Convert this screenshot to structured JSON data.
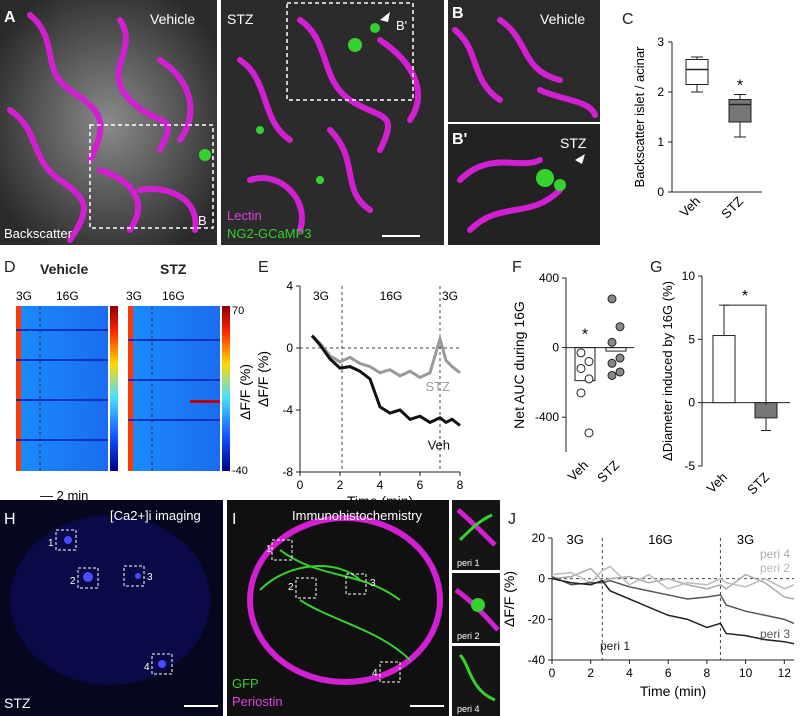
{
  "panel_labels": {
    "A": "A",
    "B": "B",
    "Bprime": "B'",
    "C": "C",
    "D": "D",
    "E": "E",
    "F": "F",
    "G": "G",
    "H": "H",
    "I": "I",
    "J": "J"
  },
  "micrographs": {
    "a_vehicle": "Vehicle",
    "a_stz": "STZ",
    "backscatter": "Backscatter",
    "box_b": "B",
    "box_bprime": "B'",
    "lectin": "Lectin",
    "ng2": "NG2-GCaMP3",
    "b_vehicle": "Vehicle",
    "bprime_stz": "STZ",
    "h_title": "[Ca2+]i imaging",
    "h_stz": "STZ",
    "i_title": "Immunohistochemistry",
    "gfp": "GFP",
    "periostin": "Periostin",
    "peri_labels": [
      "peri 1",
      "peri 2",
      "peri 4"
    ],
    "roi_numbers": [
      "1",
      "2",
      "3",
      "4"
    ]
  },
  "colors": {
    "magenta": "#d11fd1",
    "green": "#35d12f",
    "blue_cells": "#2a2ad6",
    "veh_line": "#111111",
    "stz_line": "#999999",
    "stz_box": "#777777"
  },
  "heatmap": {
    "vehicle": "Vehicle",
    "stz": "STZ",
    "g3": "3G",
    "g16": "16G",
    "colorbar_max": "70",
    "colorbar_min": "-40",
    "colorbar_label": "ΔF/F (%)",
    "scale": "— 2 min"
  },
  "chart_data": [
    {
      "type": "box",
      "panel": "C",
      "categories": [
        "Veh",
        "STZ"
      ],
      "ylabel": "Backscatter islet / acinar",
      "ylim": [
        0,
        3
      ],
      "yticks": [
        "0",
        "1",
        "2",
        "3"
      ],
      "boxes": [
        {
          "name": "Veh",
          "min": 2.0,
          "q1": 2.15,
          "median": 2.45,
          "q3": 2.65,
          "max": 2.7
        },
        {
          "name": "STZ",
          "min": 1.1,
          "q1": 1.4,
          "median": 1.75,
          "q3": 1.85,
          "max": 1.95
        }
      ],
      "annotation": "*"
    },
    {
      "type": "line",
      "panel": "E",
      "xlabel": "Time (min)",
      "ylabel": "ΔF/F (%)",
      "xlim": [
        0,
        8
      ],
      "ylim": [
        -8,
        4
      ],
      "xticks": [
        "0",
        "2",
        "4",
        "6",
        "8"
      ],
      "yticks": [
        "4",
        "0",
        "-4",
        "-8"
      ],
      "phase_labels": [
        "3G",
        "16G",
        "3G"
      ],
      "phase_boundaries": [
        2.1,
        7.0
      ],
      "series": [
        {
          "name": "STZ",
          "x": [
            0.6,
            1.0,
            1.5,
            2.0,
            2.5,
            3.0,
            3.5,
            4.0,
            4.5,
            5.0,
            5.5,
            6.0,
            6.5,
            7.0,
            7.3,
            7.6,
            8.0
          ],
          "y": [
            0.8,
            0.3,
            -0.5,
            -0.9,
            -0.6,
            -1.0,
            -1.2,
            -1.6,
            -1.4,
            -1.8,
            -1.5,
            -1.9,
            -1.6,
            0.6,
            -0.8,
            -1.2,
            -1.6
          ]
        },
        {
          "name": "Veh",
          "x": [
            0.6,
            1.0,
            1.5,
            2.0,
            2.5,
            3.0,
            3.5,
            4.0,
            4.5,
            5.0,
            5.5,
            6.0,
            6.5,
            7.0,
            7.3,
            7.6,
            8.0
          ],
          "y": [
            0.8,
            0.2,
            -0.7,
            -1.3,
            -1.2,
            -1.5,
            -2.0,
            -3.8,
            -4.2,
            -4.0,
            -4.6,
            -4.4,
            -4.8,
            -4.5,
            -4.8,
            -4.6,
            -5.0
          ]
        }
      ]
    },
    {
      "type": "scatter",
      "panel": "F",
      "categories": [
        "Veh",
        "STZ"
      ],
      "ylabel": "Net AUC during 16G",
      "ylim": [
        -600,
        400
      ],
      "yticks": [
        "400",
        "0",
        "-400"
      ],
      "points": [
        {
          "name": "Veh",
          "values": [
            -30,
            -80,
            -120,
            -180,
            -260,
            -490
          ]
        },
        {
          "name": "STZ",
          "values": [
            280,
            120,
            30,
            -60,
            -90,
            -140,
            -160
          ]
        }
      ],
      "means": [
        -190,
        -20
      ],
      "annotation": "*"
    },
    {
      "type": "bar",
      "panel": "G",
      "categories": [
        "Veh",
        "STZ"
      ],
      "ylabel": "ΔDiameter induced by 16G (%)",
      "ylim": [
        -5,
        10
      ],
      "yticks": [
        "10",
        "5",
        "0",
        "-5"
      ],
      "values": [
        5.3,
        -1.2
      ],
      "errors": [
        2.4,
        1.0
      ],
      "annotation": "*"
    },
    {
      "type": "line",
      "panel": "J",
      "xlabel": "Time (min)",
      "ylabel": "ΔF/F (%)",
      "xlim": [
        0,
        12.5
      ],
      "ylim": [
        -40,
        20
      ],
      "xticks": [
        "0",
        "2",
        "4",
        "6",
        "8",
        "10",
        "12"
      ],
      "yticks": [
        "20",
        "0",
        "-20",
        "-40"
      ],
      "phase_labels": [
        "3G",
        "16G",
        "3G"
      ],
      "phase_boundaries": [
        2.6,
        8.7
      ],
      "series": [
        {
          "name": "peri 4",
          "x": [
            0,
            1,
            2,
            2.6,
            3,
            4,
            5,
            6,
            7,
            8,
            8.7,
            9,
            10,
            11,
            12,
            12.5
          ],
          "y": [
            0,
            1,
            5,
            -1,
            0,
            1,
            -2,
            0,
            -3,
            -5,
            -3,
            -5,
            2,
            -2,
            -9,
            -10
          ]
        },
        {
          "name": "peri 2",
          "x": [
            0,
            1,
            2,
            2.6,
            3,
            4,
            5,
            6,
            7,
            8,
            8.7,
            9,
            10,
            11,
            12,
            12.5
          ],
          "y": [
            2,
            3,
            -2,
            4,
            6,
            -3,
            2,
            -5,
            -2,
            -3,
            0,
            -2,
            -4,
            0,
            -5,
            -3
          ]
        },
        {
          "name": "peri 3",
          "x": [
            0,
            1,
            2,
            2.6,
            3,
            4,
            5,
            6,
            7,
            8,
            8.7,
            9,
            10,
            11,
            12,
            12.5
          ],
          "y": [
            1,
            -3,
            -2,
            -2,
            -1,
            -4,
            -6,
            -8,
            -10,
            -9,
            -8,
            -13,
            -16,
            -18,
            -20,
            -22
          ]
        },
        {
          "name": "peri 1",
          "x": [
            0,
            1,
            2,
            2.6,
            3,
            4,
            5,
            6,
            7,
            8,
            8.7,
            9,
            10,
            11,
            12,
            12.5
          ],
          "y": [
            0,
            -2,
            -3,
            -1,
            -6,
            -10,
            -14,
            -18,
            -20,
            -24,
            -22,
            -27,
            -28,
            -30,
            -31,
            -32
          ]
        }
      ]
    }
  ]
}
